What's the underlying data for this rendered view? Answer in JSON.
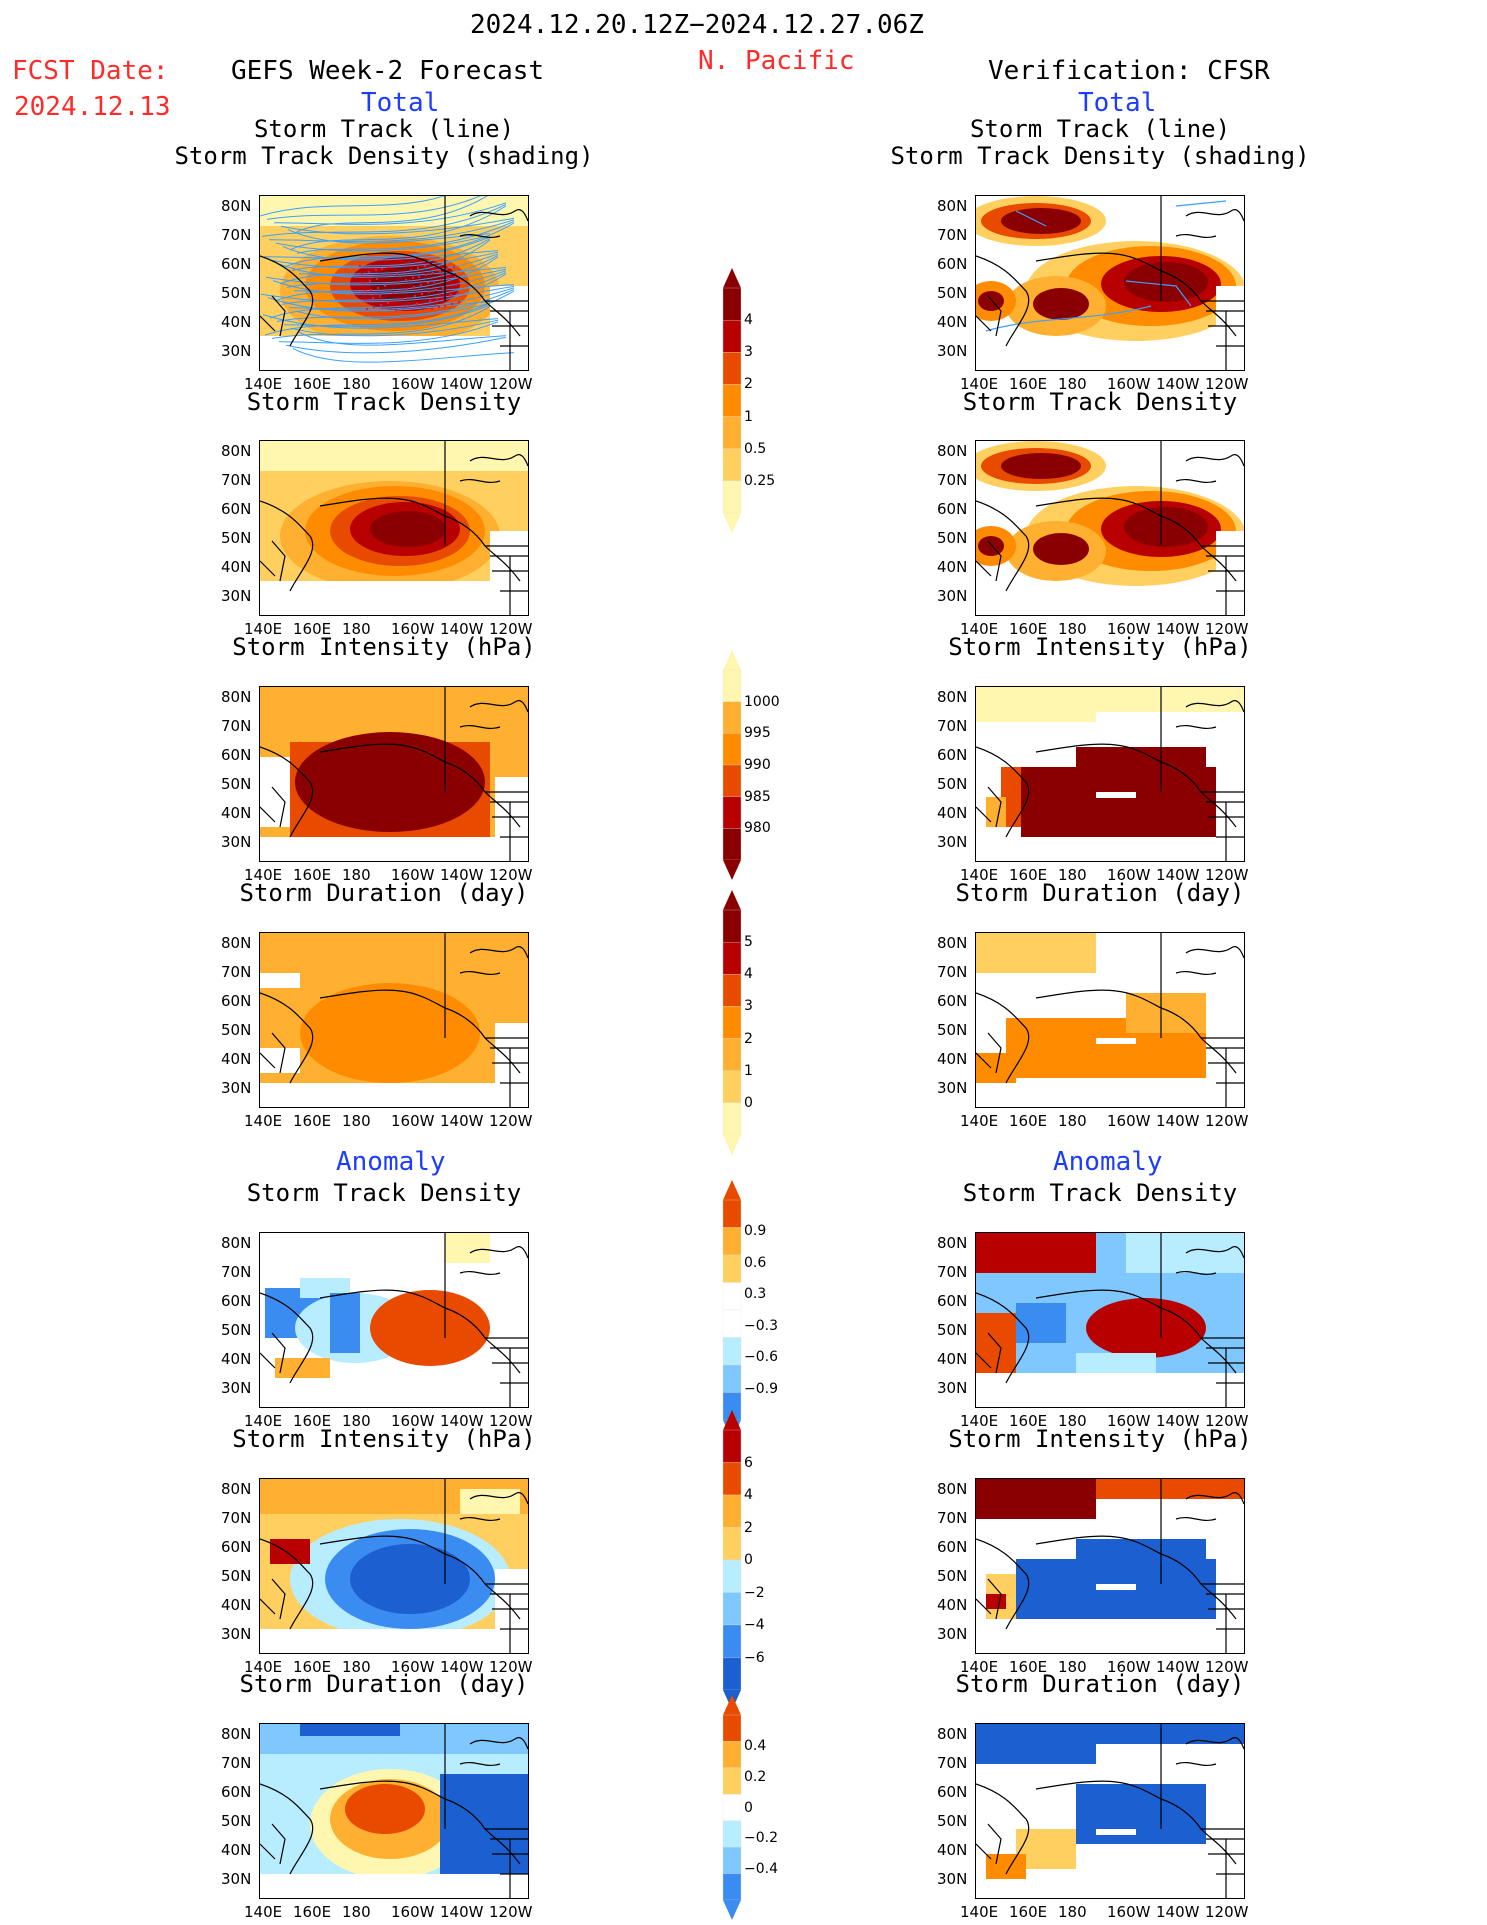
{
  "header": {
    "date_range": "2024.12.20.12Z−2024.12.27.06Z",
    "region": "N. Pacific",
    "fcst_label": "FCST Date:",
    "fcst_date": "2024.12.13",
    "left_title": "GEFS Week-2 Forecast",
    "right_title": "Verification: CFSR",
    "total_label": "Total",
    "anomaly_label": "Anomaly"
  },
  "panel_titles": {
    "storm_track_line": "Storm Track (line)",
    "storm_track_density_shading": "Storm Track Density (shading)",
    "storm_track_density": "Storm Track Density",
    "storm_intensity": "Storm Intensity (hPa)",
    "storm_duration": "Storm Duration (day)"
  },
  "axes": {
    "lat_labels": [
      "80N",
      "70N",
      "60N",
      "50N",
      "40N",
      "30N"
    ],
    "lon_labels": [
      "140E",
      "160E",
      "180",
      "160W",
      "140W",
      "120W"
    ]
  },
  "colorbars": {
    "track_density": [
      "4",
      "3",
      "2",
      "1",
      "0.5",
      "0.25"
    ],
    "intensity": [
      "1000",
      "995",
      "990",
      "985",
      "980"
    ],
    "duration": [
      "5",
      "4",
      "3",
      "2",
      "1",
      "0"
    ],
    "anom_density": [
      "0.9",
      "0.6",
      "0.3",
      "−0.3",
      "−0.6",
      "−0.9"
    ],
    "anom_intensity": [
      "6",
      "4",
      "2",
      "0",
      "−2",
      "−4",
      "−6"
    ],
    "anom_duration": [
      "0.4",
      "0.2",
      "0",
      "−0.2",
      "−0.4"
    ]
  },
  "colors": {
    "warm": [
      "#fff7b0",
      "#ffd060",
      "#ffb030",
      "#ff8c00",
      "#e84a00",
      "#b80000",
      "#8a0000"
    ],
    "cool": [
      "#ffffff",
      "#b8ecff",
      "#7ec8ff",
      "#3a8cf0",
      "#1c5fd0"
    ],
    "track_line": "#3aa0ff",
    "track_dots": "#d02050"
  }
}
